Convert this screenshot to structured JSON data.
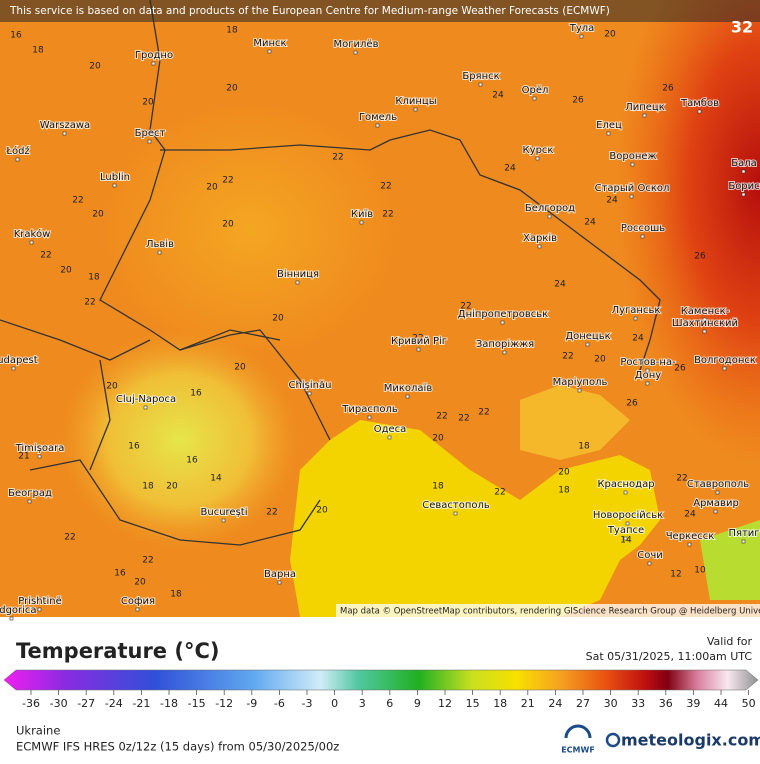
{
  "notice": "This service is based on data and products of the European Centre for Medium-range Weather Forecasts (ECMWF)",
  "badge": "32",
  "cities": [
    "Гродно",
    "Минск",
    "Могилёв",
    "Тула",
    "Брянск",
    "Орёл",
    "Клинцы",
    "Тамбов",
    "Warszawa",
    "Брест",
    "Гомель",
    "Липецк",
    "Елец",
    "Łódź",
    "Курск",
    "Воронеж",
    "Бала",
    "Lublin",
    "Старый Оскол",
    "Борис",
    "Київ",
    "Белгород",
    "Kraków",
    "Львів",
    "Харків",
    "Россошь",
    "Вінниця",
    "Луганськ",
    "Каменск-",
    "Шахтинский",
    "Дніпропетровськ",
    "Донецьк",
    "Кривий Ріг",
    "Запоріжжя",
    "Budapest",
    "Ростов-на-",
    "Дону",
    "Волгодонск",
    "Chișinău",
    "Миколаїв",
    "Маріуполь",
    "Cluj-Napoca",
    "Тирасполь",
    "Одеса",
    "Timișoara",
    "Краснодар",
    "Ставрополь",
    "Београд",
    "Армавир",
    "Севастополь",
    "Новоросійськ",
    "București",
    "Туапсе",
    "Черкесск",
    "Пятиг",
    "Сочи",
    "Варна",
    "Prishtinë",
    "София",
    "Podgorica"
  ],
  "map_values": [
    16,
    18,
    18,
    20,
    20,
    20,
    24,
    26,
    26,
    20,
    22,
    22,
    20,
    22,
    22,
    20,
    20,
    22,
    24,
    24,
    24,
    22,
    20,
    18,
    22,
    20,
    22,
    24,
    26,
    22,
    22,
    20,
    24,
    26,
    20,
    20,
    16,
    16,
    16,
    14,
    20,
    18,
    21,
    22,
    22,
    22,
    18,
    20,
    18,
    22,
    20,
    18,
    20,
    22,
    22,
    22,
    20,
    18,
    16,
    22,
    24,
    14,
    12,
    10,
    26
  ],
  "attribution": "Map data © OpenStreetMap contributors, rendering GIScience Research Group @ Heidelberg University",
  "legend": {
    "title": "Temperature (°C)",
    "ticks": [
      -36,
      -30,
      -27,
      -24,
      -21,
      -18,
      -15,
      -12,
      -9,
      -6,
      -3,
      0,
      3,
      6,
      9,
      12,
      15,
      18,
      21,
      24,
      27,
      30,
      33,
      36,
      39,
      44,
      50
    ]
  },
  "valid": {
    "label": "Valid for",
    "time": "Sat 05/31/2025, 11:00am UTC"
  },
  "footer": {
    "region": "Ukraine",
    "model": "ECMWF IFS HRES 0z/12z (15 days) from  05/30/2025/00z",
    "ecmwf": "ECMWF",
    "brand": "meteologix.com"
  }
}
